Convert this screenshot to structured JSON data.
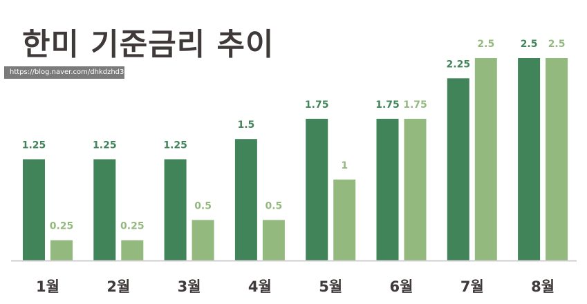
{
  "header": {
    "title": "한미 기준금리 추이",
    "watermark": "https://blog.naver.com/dhkdzhd3"
  },
  "colors": {
    "series_dark": "#41845a",
    "series_light": "#93b97e",
    "axis": "#cfcfcf",
    "title": "#3f3a39"
  },
  "chart_data": {
    "type": "bar",
    "title": "한미 기준금리 추이",
    "categories": [
      "1월",
      "2월",
      "3월",
      "4월",
      "5월",
      "6월",
      "7월",
      "8월"
    ],
    "series": [
      {
        "values": [
          1.25,
          1.25,
          1.25,
          1.5,
          1.75,
          1.75,
          2.25,
          2.5
        ],
        "labels": [
          "1.25",
          "1.25",
          "1.25",
          "1.5",
          "1.75",
          "1.75",
          "2.25",
          "2.5"
        ]
      },
      {
        "values": [
          0.25,
          0.25,
          0.5,
          0.5,
          1,
          1.75,
          2.5,
          2.5
        ],
        "labels": [
          "0.25",
          "0.25",
          "0.5",
          "0.5",
          "1",
          "1.75",
          "2.5",
          "2.5"
        ]
      }
    ],
    "ylim": [
      0,
      2.5
    ],
    "grid": false,
    "legend": "none",
    "data_labels": true
  }
}
